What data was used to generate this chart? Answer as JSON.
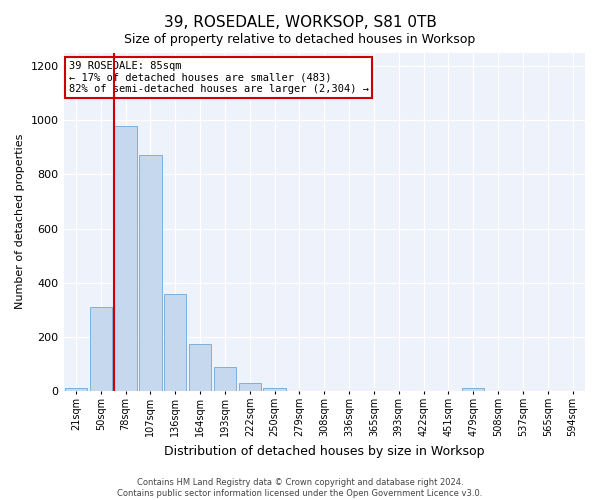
{
  "title": "39, ROSEDALE, WORKSOP, S81 0TB",
  "subtitle": "Size of property relative to detached houses in Worksop",
  "xlabel": "Distribution of detached houses by size in Worksop",
  "ylabel": "Number of detached properties",
  "categories": [
    "21sqm",
    "50sqm",
    "78sqm",
    "107sqm",
    "136sqm",
    "164sqm",
    "193sqm",
    "222sqm",
    "250sqm",
    "279sqm",
    "308sqm",
    "336sqm",
    "365sqm",
    "393sqm",
    "422sqm",
    "451sqm",
    "479sqm",
    "508sqm",
    "537sqm",
    "565sqm",
    "594sqm"
  ],
  "values": [
    10,
    310,
    980,
    870,
    360,
    175,
    90,
    30,
    10,
    0,
    0,
    0,
    0,
    0,
    0,
    0,
    10,
    0,
    0,
    0,
    0
  ],
  "bar_color": "#c5d8ee",
  "bar_edge_color": "#6fa8d5",
  "annotation_line1": "39 ROSEDALE: 85sqm",
  "annotation_line2": "← 17% of detached houses are smaller (483)",
  "annotation_line3": "82% of semi-detached houses are larger (2,304) →",
  "red_line_color": "#cc0000",
  "ylim": [
    0,
    1250
  ],
  "yticks": [
    0,
    200,
    400,
    600,
    800,
    1000,
    1200
  ],
  "background_color": "#eef2fb",
  "grid_color": "#ffffff",
  "footer_line1": "Contains HM Land Registry data © Crown copyright and database right 2024.",
  "footer_line2": "Contains public sector information licensed under the Open Government Licence v3.0.",
  "red_bar_index": 2,
  "title_fontsize": 11,
  "subtitle_fontsize": 9,
  "ylabel_fontsize": 8,
  "xlabel_fontsize": 9
}
